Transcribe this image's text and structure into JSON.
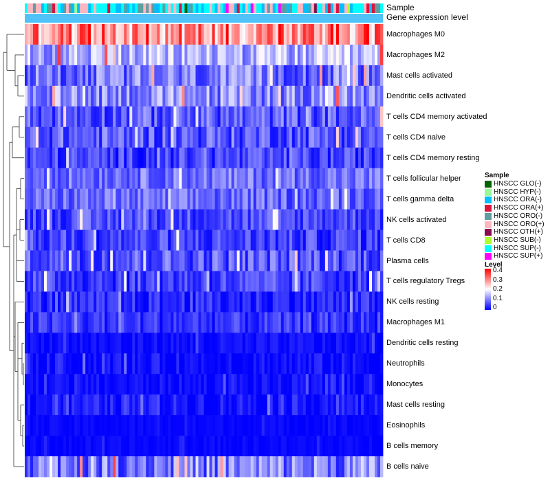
{
  "chart_data": {
    "type": "heatmap",
    "annotation_labels": [
      "Sample",
      "Gene expression level"
    ],
    "n_samples": 130,
    "rows": [
      {
        "label": "Macrophages M0",
        "mean": 0.29,
        "spread": 0.1
      },
      {
        "label": "Macrophages M2",
        "mean": 0.14,
        "spread": 0.07
      },
      {
        "label": "Mast cells activated",
        "mean": 0.09,
        "spread": 0.07
      },
      {
        "label": "Dendritic cells activated",
        "mean": 0.11,
        "spread": 0.07
      },
      {
        "label": "T cells CD4 memory activated",
        "mean": 0.07,
        "spread": 0.06
      },
      {
        "label": "T cells CD4 naive",
        "mean": 0.07,
        "spread": 0.06
      },
      {
        "label": "T cells CD4 memory resting",
        "mean": 0.05,
        "spread": 0.05
      },
      {
        "label": "T cells follicular helper",
        "mean": 0.09,
        "spread": 0.05
      },
      {
        "label": "T cells gamma delta",
        "mean": 0.08,
        "spread": 0.05
      },
      {
        "label": "NK cells activated",
        "mean": 0.06,
        "spread": 0.05
      },
      {
        "label": "T cells CD8",
        "mean": 0.05,
        "spread": 0.05
      },
      {
        "label": "Plasma cells",
        "mean": 0.07,
        "spread": 0.06
      },
      {
        "label": "T cells regulatory  Tregs",
        "mean": 0.05,
        "spread": 0.05
      },
      {
        "label": "NK cells resting",
        "mean": 0.03,
        "spread": 0.04
      },
      {
        "label": "Macrophages M1",
        "mean": 0.04,
        "spread": 0.04
      },
      {
        "label": "Dendritic cells resting",
        "mean": 0.01,
        "spread": 0.02
      },
      {
        "label": "Neutrophils",
        "mean": 0.01,
        "spread": 0.03
      },
      {
        "label": "Monocytes",
        "mean": 0.01,
        "spread": 0.02
      },
      {
        "label": "Mast cells resting",
        "mean": 0.02,
        "spread": 0.03
      },
      {
        "label": "Eosinophils",
        "mean": 0.005,
        "spread": 0.01
      },
      {
        "label": "B cells memory",
        "mean": 0.005,
        "spread": 0.01
      },
      {
        "label": "B cells naive",
        "mean": 0.1,
        "spread": 0.08
      }
    ],
    "legend_sample": {
      "title": "Sample",
      "items": [
        {
          "label": "HNSCC GLO(-)",
          "color": "#006400"
        },
        {
          "label": "HNSCC HYP(-)",
          "color": "#98fb98"
        },
        {
          "label": "HNSCC ORA(-)",
          "color": "#00bfff"
        },
        {
          "label": "HNSCC ORA(+)",
          "color": "#dc143c"
        },
        {
          "label": "HNSCC ORO(-)",
          "color": "#5f9ea0"
        },
        {
          "label": "HNSCC ORO(+)",
          "color": "#ffb6c1"
        },
        {
          "label": "HNSCC OTH(+)",
          "color": "#8b0a50"
        },
        {
          "label": "HNSCC SUB(-)",
          "color": "#adff2f"
        },
        {
          "label": "HNSCC SUP(-)",
          "color": "#00ffff"
        },
        {
          "label": "HNSCC SUP(+)",
          "color": "#ff00ff"
        }
      ]
    },
    "legend_level": {
      "title": "Level",
      "ticks": [
        "0.4",
        "0.3",
        "0.2",
        "0.1",
        "0"
      ],
      "range": [
        0,
        0.4
      ]
    },
    "gene_expression_color": "#4fc3f7",
    "color_low": "#0000ff",
    "color_mid": "#ffffff",
    "color_high": "#ff0000"
  }
}
